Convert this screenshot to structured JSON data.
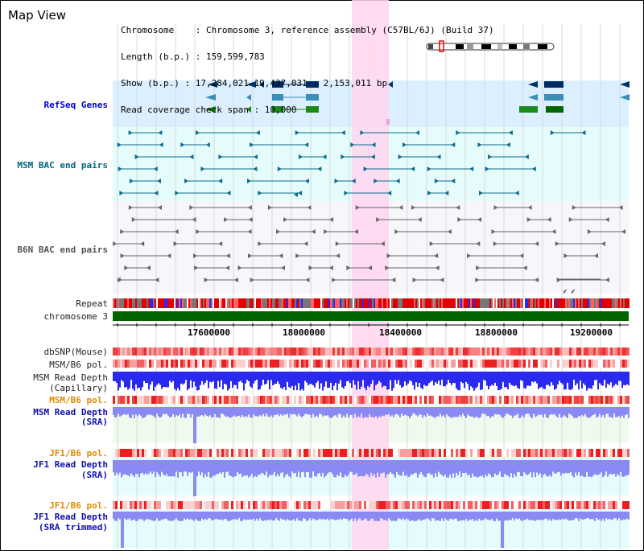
{
  "title": "Map View",
  "info": {
    "line1": "Chromosome    : Chromosome 3, reference assembly (C57BL/6J) (Build 37)",
    "line2": "Length (b.p.) : 159,599,783",
    "line3": "Show (b.p.) : 17,284,021-19,437,031 : 2,153,011 bp",
    "line4": "Read coverage check span : 10,000"
  },
  "tracks": {
    "refseq": "RefSeq Genes",
    "msm_bac": "MSM BAC end pairs",
    "b6n_bac": "B6N BAC end pairs",
    "repeat": "Repeat",
    "chromosome": "chromosome 3",
    "dbsnp": "dbSNP(Mouse)",
    "msm_b6_pol": "MSM/B6 pol.",
    "msm_read_depth_cap_1": "MSM Read Depth",
    "msm_read_depth_cap_2": "(Capillary)",
    "msm_b6_pol_2": "MSM/B6 pol.",
    "msm_read_depth_sra_1": "MSM Read Depth",
    "msm_read_depth_sra_2": "(SRA)",
    "jf1_b6_pol": "JF1/B6 pol.",
    "jf1_read_depth_1": "JF1 Read Depth",
    "jf1_read_depth_2": "(SRA)",
    "jf1_b6_pol_2": "JF1/B6 pol.",
    "jf1_trim_1": "JF1 Read Depth",
    "jf1_trim_2": "(SRA trimmed)"
  },
  "ruler": [
    "17600000",
    "18000000",
    "18400000",
    "18800000",
    "19200000"
  ],
  "colors": {
    "highlight": "#ffd6f0",
    "refseq_bg": "#dcefff",
    "msm_bg": "#e6fbfb",
    "chrom_green": "#006400",
    "depth_blue": "#2a2aee",
    "depth_light": "#8a8af5"
  }
}
